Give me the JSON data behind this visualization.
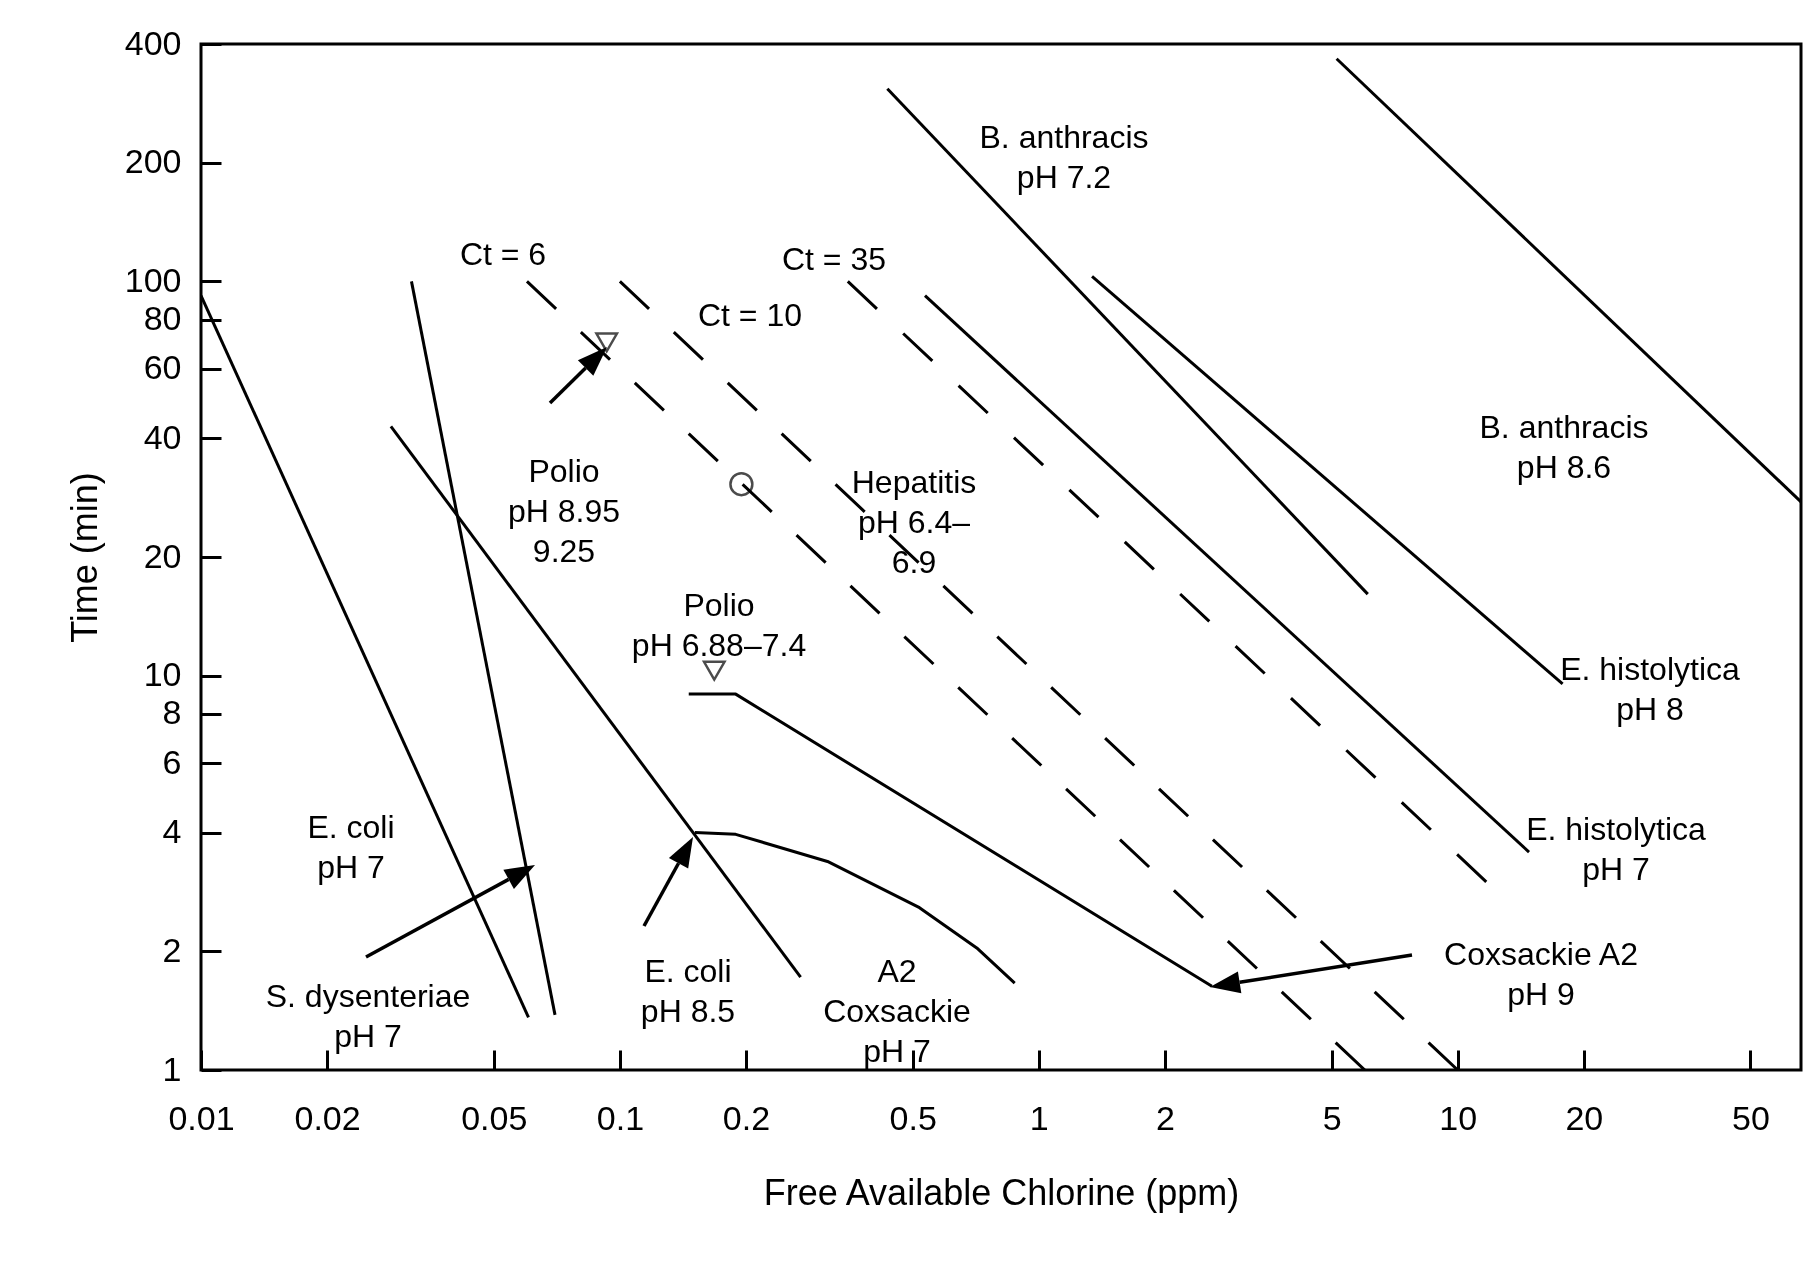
{
  "chart_data": {
    "type": "line",
    "xlabel": "Free Available Chlorine (ppm)",
    "ylabel": "Time (min)",
    "log": "xy",
    "grid": false,
    "xlim": [
      0.01,
      66
    ],
    "ylim": [
      1,
      400
    ],
    "xticks": [
      0.01,
      0.02,
      0.05,
      0.1,
      0.2,
      0.5,
      1,
      2,
      5,
      10,
      20,
      50
    ],
    "yticks": [
      1,
      2,
      4,
      6,
      8,
      10,
      20,
      40,
      60,
      80,
      100,
      200,
      400
    ],
    "series": [
      {
        "color": "#000000",
        "line_style": "solid",
        "x": [
          0.01,
          0.0605
        ],
        "values": [
          92,
          1.36
        ]
      },
      {
        "color": "#000000",
        "line_style": "solid",
        "x": [
          0.0318,
          0.07
        ],
        "values": [
          100,
          1.38
        ]
      },
      {
        "color": "#000000",
        "line_style": "solid",
        "x": [
          0.0284,
          0.27
        ],
        "values": [
          42.9,
          1.72
        ]
      },
      {
        "color": "#000000",
        "line_style": "solid",
        "x": [
          0.151,
          0.189,
          0.313,
          0.519,
          0.711,
          0.876
        ],
        "values": [
          4.0,
          3.96,
          3.38,
          2.58,
          2.04,
          1.66
        ]
      },
      {
        "color": "#000000",
        "line_style": "solid",
        "x": [
          0.146,
          0.189,
          2.59
        ],
        "values": [
          8.98,
          8.98,
          1.63
        ]
      },
      {
        "color": "#000000",
        "line_style": "solid",
        "x": [
          0.435,
          6.1
        ],
        "values": [
          308,
          16.1
        ]
      },
      {
        "color": "#000000",
        "line_style": "solid",
        "x": [
          1.34,
          17.8
        ],
        "values": [
          103,
          9.53
        ]
      },
      {
        "color": "#000000",
        "line_style": "solid",
        "x": [
          5.14,
          66
        ],
        "values": [
          367,
          27.6
        ]
      },
      {
        "color": "#000000",
        "line_style": "solid",
        "x": [
          0.535,
          14.8
        ],
        "values": [
          92,
          3.57
        ]
      },
      {
        "color": "#000000",
        "line_style": "dashed",
        "x": [
          0.06,
          6
        ],
        "values": [
          100,
          1
        ]
      },
      {
        "color": "#000000",
        "line_style": "dashed",
        "x": [
          0.1,
          10
        ],
        "values": [
          100,
          1
        ]
      },
      {
        "color": "#000000",
        "line_style": "dashed",
        "x": [
          0.35,
          11.7
        ],
        "values": [
          100,
          3
        ]
      },
      {
        "type": "scatter",
        "color": "#000000",
        "marker": "triangle",
        "x": [
          0.093,
          0.168
        ],
        "values": [
          70,
          10.3
        ]
      },
      {
        "type": "scatter",
        "color": "#000000",
        "marker": "circle",
        "x": [
          0.195
        ],
        "values": [
          30.6
        ]
      }
    ],
    "annotations": [
      "B. anthracis\npH 7.2",
      "Ct = 6",
      "Ct = 10",
      "Ct = 35",
      "Polio\npH 8.95\n9.25",
      "Hepatitis\npH 6.4–\n6.9",
      "B. anthracis\npH 8.6",
      "Polio\npH 6.88–7.4",
      "E. histolytica\npH 8",
      "E. histolytica\npH 7",
      "E. coli\npH 7",
      "S. dysenteriae\npH 7",
      "E. coli\npH 8.5",
      "A2\nCoxsackie\npH 7",
      "Coxsackie A2\npH 9"
    ]
  }
}
